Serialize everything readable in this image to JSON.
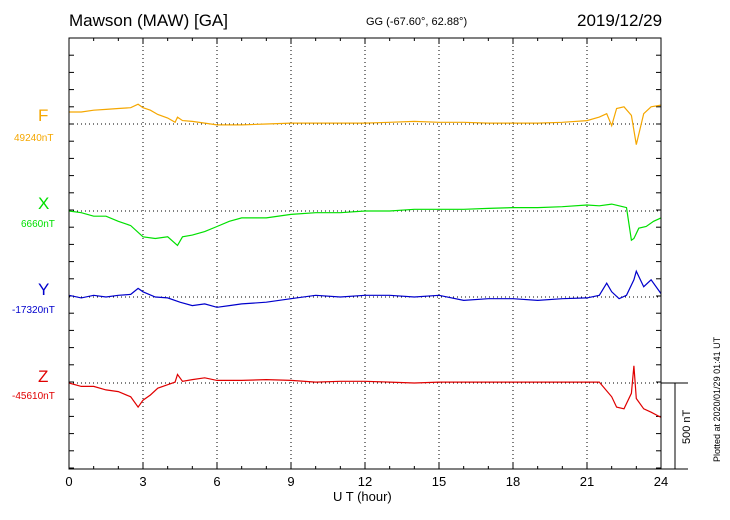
{
  "header": {
    "station": "Mawson (MAW)  [GA]",
    "coords": "GG (-67.60°,  62.88°)",
    "date": "2019/12/29"
  },
  "plotted_note": "Plotted at 2020/01/29 01:41 UT",
  "colors": {
    "F": "#f5a700",
    "X": "#00e000",
    "Y": "#0000cc",
    "Z": "#e00000"
  },
  "chart_data": {
    "type": "line",
    "title": "Mawson (MAW)  [GA]",
    "xlabel": "U T (hour)",
    "xlim": [
      0,
      24
    ],
    "x_ticks": [
      "0",
      "3",
      "6",
      "9",
      "12",
      "15",
      "18",
      "21",
      "24"
    ],
    "grid": true,
    "scale_bar": {
      "label": "500 nT",
      "value": 500
    },
    "series": [
      {
        "name": "F",
        "baseline_label": "49240nT",
        "baseline": 49240,
        "color": "#f5a700",
        "x": [
          0,
          0.5,
          1,
          1.5,
          2,
          2.5,
          2.8,
          3,
          3.3,
          3.6,
          4,
          4.3,
          4.4,
          4.6,
          5,
          5.5,
          6,
          7,
          8,
          9,
          10,
          11,
          12,
          13,
          14,
          15,
          16,
          17,
          18,
          19,
          20,
          21,
          21.5,
          21.8,
          22,
          22.2,
          22.5,
          22.8,
          23,
          23.3,
          23.6,
          24
        ],
        "y": [
          70,
          70,
          80,
          85,
          90,
          95,
          115,
          95,
          80,
          55,
          35,
          10,
          40,
          20,
          15,
          5,
          -5,
          -5,
          0,
          5,
          5,
          5,
          5,
          10,
          15,
          10,
          10,
          5,
          5,
          5,
          10,
          20,
          40,
          60,
          -10,
          90,
          100,
          50,
          -120,
          60,
          100,
          110
        ]
      },
      {
        "name": "X",
        "baseline_label": "6660nT",
        "baseline": 6660,
        "color": "#00e000",
        "x": [
          0,
          0.5,
          1,
          1.5,
          2,
          2.5,
          3,
          3.5,
          4,
          4.4,
          4.6,
          5,
          5.5,
          6,
          6.5,
          7,
          8,
          9,
          10,
          11,
          12,
          13,
          14,
          15,
          16,
          17,
          18,
          19,
          20,
          21,
          21.5,
          22,
          22.3,
          22.6,
          22.8,
          22.9,
          23.1,
          23.4,
          23.7,
          24
        ],
        "y": [
          0,
          -10,
          -30,
          -30,
          -60,
          -85,
          -150,
          -160,
          -150,
          -200,
          -150,
          -140,
          -120,
          -90,
          -60,
          -40,
          -40,
          -20,
          -10,
          -10,
          0,
          0,
          10,
          10,
          10,
          15,
          20,
          20,
          25,
          35,
          30,
          40,
          30,
          20,
          -170,
          -160,
          -100,
          -90,
          -60,
          -40
        ]
      },
      {
        "name": "Y",
        "baseline_label": "-17320nT",
        "baseline": -17320,
        "color": "#0000cc",
        "x": [
          0,
          0.5,
          1,
          1.5,
          2,
          2.5,
          2.8,
          3,
          3.5,
          4,
          4.5,
          5,
          5.5,
          6,
          6.5,
          7,
          8,
          9,
          10,
          11,
          12,
          13,
          14,
          15,
          16,
          17,
          18,
          19,
          20,
          21,
          21.5,
          21.8,
          22,
          22.3,
          22.6,
          22.9,
          23,
          23.3,
          23.6,
          24
        ],
        "y": [
          10,
          -5,
          10,
          0,
          10,
          15,
          50,
          30,
          0,
          -5,
          -30,
          -50,
          -40,
          -60,
          -50,
          -40,
          -30,
          -10,
          10,
          0,
          10,
          10,
          0,
          10,
          -20,
          -10,
          -10,
          -20,
          -10,
          -5,
          10,
          80,
          30,
          -10,
          10,
          100,
          150,
          60,
          100,
          20
        ]
      },
      {
        "name": "Z",
        "baseline_label": "-45610nT",
        "baseline": -45610,
        "color": "#e00000",
        "x": [
          0,
          0.5,
          1,
          1.5,
          2,
          2.5,
          2.8,
          3,
          3.3,
          3.6,
          4,
          4.3,
          4.4,
          4.6,
          5,
          5.5,
          6,
          7,
          8,
          9,
          10,
          11,
          12,
          13,
          14,
          15,
          16,
          17,
          18,
          19,
          20,
          21,
          21.5,
          22,
          22.2,
          22.5,
          22.8,
          22.9,
          23,
          23.3,
          23.6,
          24
        ],
        "y": [
          0,
          -20,
          -20,
          -40,
          -50,
          -80,
          -140,
          -100,
          -70,
          -30,
          -10,
          5,
          50,
          10,
          20,
          30,
          15,
          15,
          20,
          15,
          5,
          10,
          10,
          5,
          0,
          5,
          5,
          5,
          5,
          5,
          5,
          5,
          5,
          -80,
          -140,
          -150,
          -60,
          100,
          -90,
          -150,
          -170,
          -200
        ]
      }
    ]
  }
}
